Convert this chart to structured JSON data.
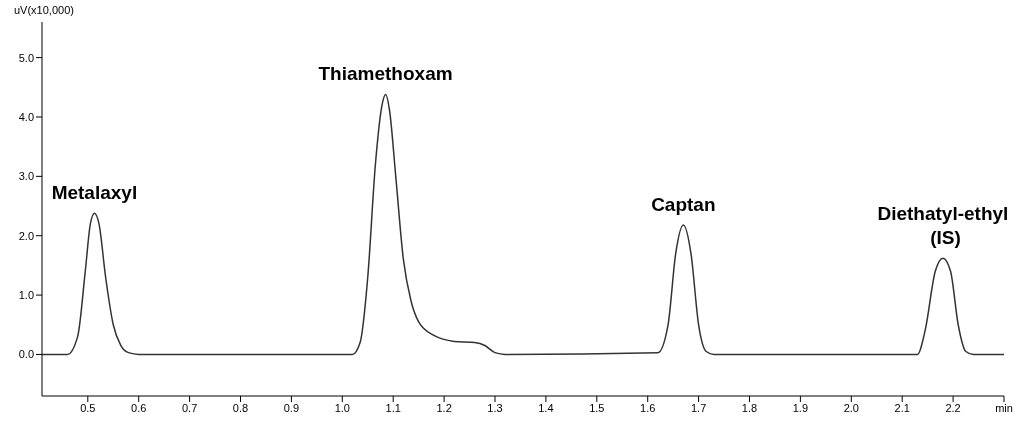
{
  "chart_data": {
    "type": "line",
    "ylabel": "uV(x10,000)",
    "x": [
      0.41,
      0.46,
      0.48,
      0.495,
      0.505,
      0.513,
      0.522,
      0.535,
      0.55,
      0.565,
      0.58,
      0.6,
      1.02,
      1.035,
      1.05,
      1.065,
      1.078,
      1.085,
      1.093,
      1.105,
      1.12,
      1.135,
      1.15,
      1.18,
      1.22,
      1.26,
      1.28,
      1.3,
      1.32,
      1.62,
      1.64,
      1.655,
      1.67,
      1.685,
      1.7,
      1.715,
      1.73,
      2.13,
      2.145,
      2.165,
      2.18,
      2.195,
      2.21,
      2.225,
      2.24,
      2.3
    ],
    "series": [
      {
        "color": "#333333",
        "values": [
          0,
          0,
          0.3,
          1.4,
          2.2,
          2.38,
          2.2,
          1.3,
          0.5,
          0.15,
          0.03,
          0,
          0,
          0.2,
          1.3,
          3.2,
          4.2,
          4.38,
          4.1,
          3.0,
          1.6,
          0.9,
          0.55,
          0.32,
          0.22,
          0.2,
          0.15,
          0.03,
          0,
          0.03,
          0.5,
          1.7,
          2.18,
          1.7,
          0.5,
          0.05,
          0,
          0,
          0.4,
          1.4,
          1.62,
          1.4,
          0.5,
          0.05,
          0,
          0
        ]
      }
    ],
    "xlim": [
      0.41,
      2.3
    ],
    "xticks": [
      {
        "value": 0.5,
        "label": "0.5"
      },
      {
        "value": 0.6,
        "label": "0.6"
      },
      {
        "value": 0.7,
        "label": "0.7"
      },
      {
        "value": 0.8,
        "label": "0.8"
      },
      {
        "value": 0.9,
        "label": "0.9"
      },
      {
        "value": 1.0,
        "label": "1.0"
      },
      {
        "value": 1.1,
        "label": "1.1"
      },
      {
        "value": 1.2,
        "label": "1.2"
      },
      {
        "value": 1.3,
        "label": "1.3"
      },
      {
        "value": 1.4,
        "label": "1.4"
      },
      {
        "value": 1.5,
        "label": "1.5"
      },
      {
        "value": 1.6,
        "label": "1.6"
      },
      {
        "value": 1.7,
        "label": "1.7"
      },
      {
        "value": 1.8,
        "label": "1.8"
      },
      {
        "value": 1.9,
        "label": "1.9"
      },
      {
        "value": 2.0,
        "label": "2.0"
      },
      {
        "value": 2.1,
        "label": "2.1"
      },
      {
        "value": 2.2,
        "label": "2.2"
      },
      {
        "value": 2.3,
        "label": "min"
      }
    ],
    "ylim": [
      -0.7,
      5.6
    ],
    "yticks": [
      {
        "value": 0,
        "label": "0.0"
      },
      {
        "value": 1,
        "label": "1.0"
      },
      {
        "value": 2,
        "label": "2.0"
      },
      {
        "value": 3,
        "label": "3.0"
      },
      {
        "value": 4,
        "label": "4.0"
      },
      {
        "value": 5,
        "label": "5.0"
      }
    ],
    "marker": "none",
    "line_style": "solid",
    "annotations": [
      {
        "text": "Metalaxyl",
        "x": 0.513,
        "y": 2.38
      },
      {
        "text": "Thiamethoxam",
        "x": 1.085,
        "y": 4.38
      },
      {
        "text": "Captan",
        "x": 1.67,
        "y": 2.18
      },
      {
        "text": "Diethatyl-ethyl\n (IS)",
        "x": 2.18,
        "y": 1.62
      }
    ]
  }
}
